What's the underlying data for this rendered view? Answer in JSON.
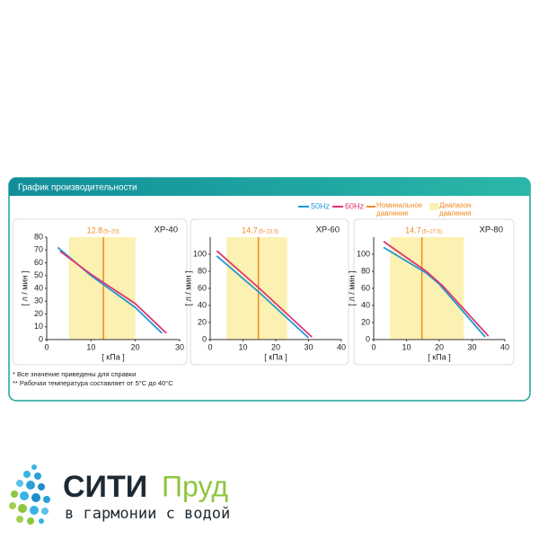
{
  "header": {
    "title": "График производительности"
  },
  "legend": {
    "nominal": "Номинальное давление",
    "range": "Диапазон давления"
  },
  "chart_data": [
    {
      "type": "line",
      "title": "XP-40",
      "x_label": "[ кПа ]",
      "y_label": "[ л / мин ]",
      "xlim": [
        0,
        30
      ],
      "xticks": [
        0,
        10,
        20,
        30
      ],
      "ylim": [
        0,
        80
      ],
      "yticks": [
        0,
        10,
        20,
        30,
        40,
        50,
        60,
        70,
        80
      ],
      "nominal_pressure": 12.8,
      "nominal_color": "#f08a24",
      "pressure_range": [
        5,
        20
      ],
      "pressure_range_label": "(5~20)",
      "range_color": "#fbf1b3",
      "series": [
        {
          "name": "50Hz",
          "color": "#1d9ad8",
          "x": [
            2.5,
            10,
            20,
            26
          ],
          "values": [
            72,
            50,
            25,
            5
          ]
        },
        {
          "name": "60Hz",
          "color": "#e3346c",
          "x": [
            3,
            10,
            20,
            27
          ],
          "values": [
            69,
            51,
            28,
            5
          ]
        }
      ]
    },
    {
      "type": "line",
      "title": "XP-60",
      "x_label": "[ кПа ]",
      "y_label": "[ л / мин ]",
      "xlim": [
        0,
        40
      ],
      "xticks": [
        0,
        10,
        20,
        30,
        40
      ],
      "ylim": [
        0,
        120
      ],
      "yticks": [
        0,
        20,
        40,
        60,
        80,
        100
      ],
      "nominal_pressure": 14.7,
      "nominal_color": "#f08a24",
      "pressure_range": [
        5,
        23.5
      ],
      "pressure_range_label": "(5~23.5)",
      "range_color": "#fbf1b3",
      "series": [
        {
          "name": "50Hz",
          "color": "#1d9ad8",
          "x": [
            2,
            15,
            30
          ],
          "values": [
            98,
            55,
            2
          ]
        },
        {
          "name": "60Hz",
          "color": "#e3346c",
          "x": [
            2,
            15,
            31
          ],
          "values": [
            104,
            60,
            3
          ]
        }
      ]
    },
    {
      "type": "line",
      "title": "XP-80",
      "x_label": "[ кПа ]",
      "y_label": "[ л / мин ]",
      "xlim": [
        0,
        40
      ],
      "xticks": [
        0,
        10,
        20,
        30,
        40
      ],
      "ylim": [
        0,
        120
      ],
      "yticks": [
        0,
        20,
        40,
        60,
        80,
        100
      ],
      "nominal_pressure": 14.7,
      "nominal_color": "#f08a24",
      "pressure_range": [
        5,
        27.5
      ],
      "pressure_range_label": "(5~27.5)",
      "range_color": "#fbf1b3",
      "series": [
        {
          "name": "50Hz",
          "color": "#1d9ad8",
          "x": [
            3,
            16,
            20,
            34
          ],
          "values": [
            108,
            78,
            65,
            3
          ]
        },
        {
          "name": "60Hz",
          "color": "#e3346c",
          "x": [
            3,
            16,
            21,
            35
          ],
          "values": [
            115,
            80,
            63,
            4
          ]
        }
      ]
    }
  ],
  "notes": [
    "* Все значение приведены для справки",
    "** Рабочая температура составляет от 5°C до 40°C"
  ],
  "logo": {
    "name_dark": "СИТИ",
    "name_green": "Пруд",
    "slogan": "в гармонии с водой"
  }
}
